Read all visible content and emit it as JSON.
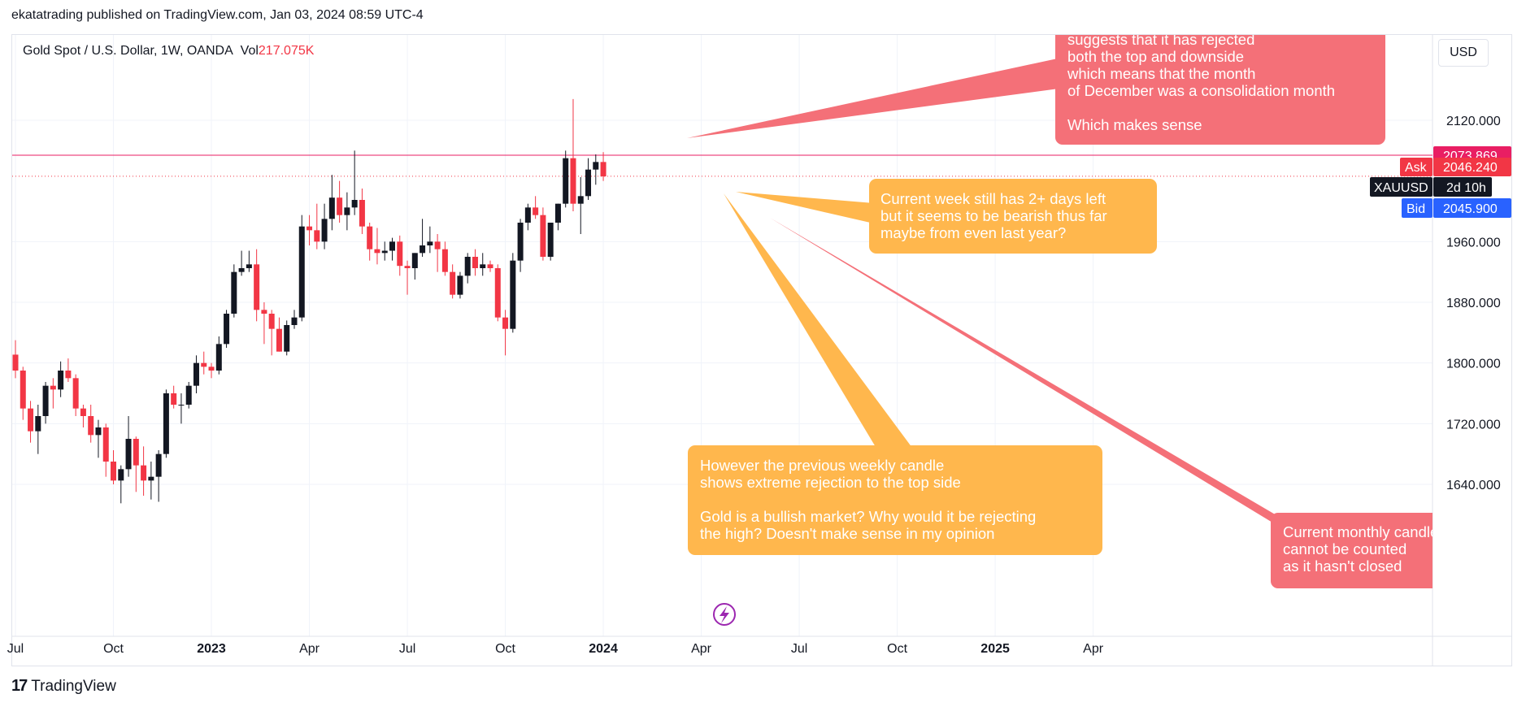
{
  "header": {
    "publish_line": "ekatatrading published on TradingView.com, Jan 03, 2024 08:59 UTC-4"
  },
  "legend": {
    "symbol_line": "Gold Spot / U.S. Dollar, 1W, OANDA",
    "vol_label": "Vol",
    "vol_value": "217.075K"
  },
  "toolbar": {
    "currency": "USD"
  },
  "footer": {
    "brand": "TradingView",
    "logo_icon": "tradingview-logo-icon"
  },
  "colors": {
    "up": "#131722",
    "down": "#f23645",
    "note_red": "#f47078",
    "note_orange": "#ffb74d",
    "ask_red": "#f23645",
    "bid_blue": "#2962ff",
    "last_pink": "#e91e63"
  },
  "chart_data": {
    "type": "candlestick",
    "timeframe": "1W",
    "ylim": [
      1580,
      2200
    ],
    "yticks": [
      "2120.000",
      "1960.000",
      "1880.000",
      "1800.000",
      "1720.000",
      "1640.000"
    ],
    "xticks": [
      {
        "label": "Jul",
        "t": 0,
        "bold": false
      },
      {
        "label": "Oct",
        "t": 13,
        "bold": false
      },
      {
        "label": "2023",
        "t": 26,
        "bold": true
      },
      {
        "label": "Apr",
        "t": 39,
        "bold": false
      },
      {
        "label": "Jul",
        "t": 52,
        "bold": false
      },
      {
        "label": "Oct",
        "t": 65,
        "bold": false
      },
      {
        "label": "2024",
        "t": 78,
        "bold": true
      },
      {
        "label": "Apr",
        "t": 91,
        "bold": false
      },
      {
        "label": "Jul",
        "t": 104,
        "bold": false
      },
      {
        "label": "Oct",
        "t": 117,
        "bold": false
      },
      {
        "label": "2025",
        "t": 130,
        "bold": true
      },
      {
        "label": "Apr",
        "t": 143,
        "bold": false
      }
    ],
    "candles": [
      [
        1811,
        1830,
        1780,
        1790
      ],
      [
        1790,
        1795,
        1725,
        1740
      ],
      [
        1740,
        1750,
        1695,
        1710
      ],
      [
        1710,
        1745,
        1680,
        1730
      ],
      [
        1730,
        1775,
        1720,
        1770
      ],
      [
        1770,
        1780,
        1740,
        1765
      ],
      [
        1765,
        1802,
        1755,
        1790
      ],
      [
        1790,
        1806,
        1775,
        1780
      ],
      [
        1780,
        1785,
        1730,
        1740
      ],
      [
        1740,
        1745,
        1715,
        1730
      ],
      [
        1730,
        1745,
        1695,
        1705
      ],
      [
        1705,
        1725,
        1675,
        1715
      ],
      [
        1715,
        1720,
        1650,
        1670
      ],
      [
        1670,
        1685,
        1640,
        1645
      ],
      [
        1645,
        1665,
        1615,
        1660
      ],
      [
        1660,
        1730,
        1650,
        1700
      ],
      [
        1700,
        1703,
        1630,
        1665
      ],
      [
        1665,
        1690,
        1625,
        1645
      ],
      [
        1645,
        1670,
        1620,
        1650
      ],
      [
        1650,
        1685,
        1617,
        1680
      ],
      [
        1680,
        1765,
        1675,
        1760
      ],
      [
        1760,
        1770,
        1740,
        1745
      ],
      [
        1745,
        1760,
        1720,
        1745
      ],
      [
        1745,
        1775,
        1740,
        1770
      ],
      [
        1770,
        1810,
        1760,
        1800
      ],
      [
        1800,
        1815,
        1785,
        1795
      ],
      [
        1795,
        1800,
        1780,
        1790
      ],
      [
        1790,
        1835,
        1785,
        1825
      ],
      [
        1825,
        1870,
        1820,
        1865
      ],
      [
        1865,
        1930,
        1860,
        1920
      ],
      [
        1920,
        1948,
        1915,
        1925
      ],
      [
        1925,
        1948,
        1920,
        1930
      ],
      [
        1930,
        1950,
        1855,
        1870
      ],
      [
        1870,
        1880,
        1825,
        1865
      ],
      [
        1865,
        1870,
        1810,
        1845
      ],
      [
        1845,
        1860,
        1815,
        1815
      ],
      [
        1815,
        1856,
        1810,
        1850
      ],
      [
        1850,
        1870,
        1845,
        1860
      ],
      [
        1860,
        1995,
        1855,
        1980
      ],
      [
        1980,
        1995,
        1955,
        1975
      ],
      [
        1975,
        2010,
        1950,
        1960
      ],
      [
        1960,
        2010,
        1950,
        1990
      ],
      [
        1990,
        2048,
        1975,
        2018
      ],
      [
        2018,
        2040,
        1985,
        1995
      ],
      [
        1995,
        2025,
        1975,
        2005
      ],
      [
        2005,
        2080,
        1995,
        2015
      ],
      [
        2015,
        2030,
        1970,
        1980
      ],
      [
        1980,
        1985,
        1935,
        1950
      ],
      [
        1950,
        1978,
        1930,
        1945
      ],
      [
        1945,
        1960,
        1935,
        1948
      ],
      [
        1948,
        1965,
        1935,
        1960
      ],
      [
        1960,
        1968,
        1915,
        1928
      ],
      [
        1928,
        1935,
        1890,
        1925
      ],
      [
        1925,
        1945,
        1910,
        1945
      ],
      [
        1945,
        1990,
        1940,
        1955
      ],
      [
        1955,
        1980,
        1945,
        1960
      ],
      [
        1960,
        1970,
        1920,
        1950
      ],
      [
        1950,
        1960,
        1915,
        1920
      ],
      [
        1920,
        1930,
        1885,
        1890
      ],
      [
        1890,
        1920,
        1885,
        1915
      ],
      [
        1915,
        1945,
        1905,
        1940
      ],
      [
        1940,
        1950,
        1915,
        1925
      ],
      [
        1925,
        1945,
        1915,
        1930
      ],
      [
        1930,
        1935,
        1920,
        1925
      ],
      [
        1925,
        1930,
        1855,
        1860
      ],
      [
        1860,
        1870,
        1810,
        1845
      ],
      [
        1845,
        1945,
        1840,
        1935
      ],
      [
        1935,
        1990,
        1920,
        1985
      ],
      [
        1985,
        2010,
        1975,
        2005
      ],
      [
        2005,
        2020,
        1990,
        1995
      ],
      [
        1995,
        2005,
        1935,
        1940
      ],
      [
        1940,
        1985,
        1935,
        1985
      ],
      [
        1985,
        2010,
        1975,
        2010
      ],
      [
        2010,
        2080,
        2005,
        2070
      ],
      [
        2070,
        2148,
        2000,
        2010
      ],
      [
        2010,
        2045,
        1970,
        2020
      ],
      [
        2020,
        2070,
        2015,
        2055
      ],
      [
        2055,
        2075,
        2035,
        2065
      ],
      [
        2065,
        2078,
        2040,
        2046
      ]
    ],
    "price_tags": {
      "last": {
        "value": 2073.869,
        "label": "2073.869"
      },
      "ask": {
        "label": "Ask",
        "value": "2046.240"
      },
      "symbol": {
        "label": "XAUUSD",
        "countdown": "2d 10h"
      },
      "bid": {
        "label": "Bid",
        "value": "2045.900"
      }
    },
    "annotations": [
      {
        "color": "red",
        "lines": [
          "suggests that it has rejected",
          "both the top and downside",
          "which means that the month",
          "of December was a consolidation month",
          "",
          "Which makes sense"
        ]
      },
      {
        "color": "orange",
        "lines": [
          "Current week still has 2+ days left",
          "but it seems to be bearish thus far",
          "maybe from even last year?"
        ]
      },
      {
        "color": "orange",
        "lines": [
          "However the previous weekly candle",
          "shows extreme rejection to the top side",
          "",
          "Gold is a bullish market? Why would it be rejecting",
          "the high? Doesn't make sense in my opinion"
        ]
      },
      {
        "color": "red",
        "lines": [
          "Current monthly candle",
          "cannot be counted",
          "as it hasn't closed"
        ]
      }
    ],
    "event_icon": "lightning-icon"
  }
}
